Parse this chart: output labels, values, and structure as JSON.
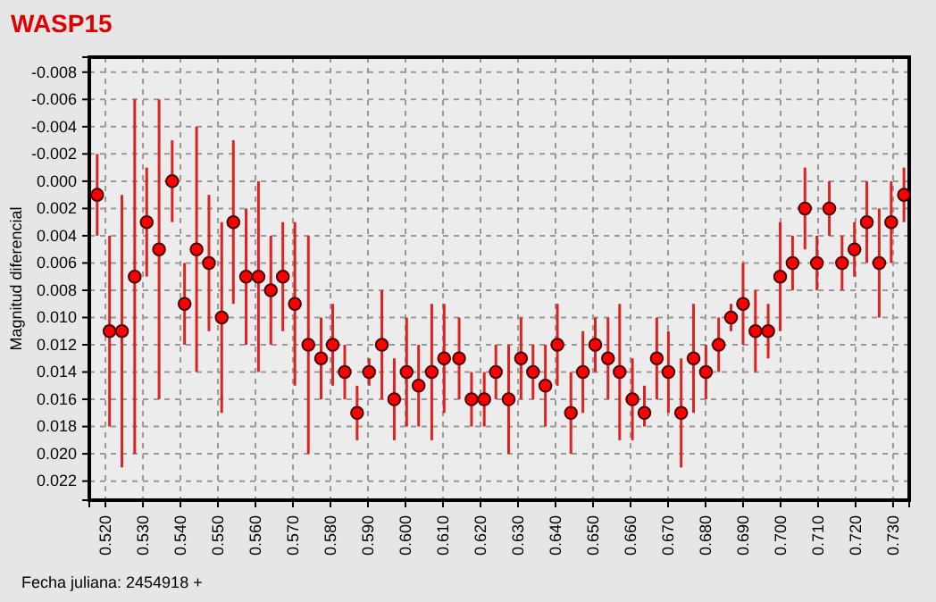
{
  "chart_data": {
    "type": "scatter",
    "title": "WASP15",
    "xlabel": "Fecha juliana: 2454918 +",
    "ylabel": "Magnitud diferencial",
    "x": [
      0.5178,
      0.5211,
      0.5244,
      0.5278,
      0.531,
      0.5343,
      0.5378,
      0.5411,
      0.5443,
      0.5476,
      0.551,
      0.5541,
      0.5575,
      0.5608,
      0.5641,
      0.5673,
      0.5705,
      0.5741,
      0.5775,
      0.5806,
      0.5838,
      0.5871,
      0.5903,
      0.5937,
      0.597,
      0.6003,
      0.6035,
      0.607,
      0.6103,
      0.6143,
      0.6176,
      0.621,
      0.6241,
      0.6275,
      0.6308,
      0.634,
      0.6373,
      0.6405,
      0.6441,
      0.6473,
      0.6506,
      0.654,
      0.6571,
      0.6605,
      0.6637,
      0.667,
      0.6701,
      0.6735,
      0.6768,
      0.6801,
      0.6835,
      0.6868,
      0.69,
      0.6933,
      0.6967,
      0.6999,
      0.7032,
      0.7065,
      0.7097,
      0.713,
      0.7164,
      0.7197,
      0.723,
      0.7263,
      0.7295,
      0.7329
    ],
    "series": [
      {
        "color": "#ff0000",
        "values": [
          0.001,
          0.011,
          0.011,
          0.007,
          0.003,
          0.005,
          0.0,
          0.009,
          0.005,
          0.006,
          0.01,
          0.003,
          0.007,
          0.007,
          0.008,
          0.007,
          0.009,
          0.012,
          0.013,
          0.012,
          0.014,
          0.017,
          0.014,
          0.012,
          0.016,
          0.014,
          0.015,
          0.014,
          0.013,
          0.013,
          0.016,
          0.016,
          0.014,
          0.016,
          0.013,
          0.014,
          0.015,
          0.012,
          0.017,
          0.014,
          0.012,
          0.013,
          0.014,
          0.016,
          0.017,
          0.013,
          0.014,
          0.017,
          0.013,
          0.014,
          0.012,
          0.01,
          0.009,
          0.011,
          0.011,
          0.007,
          0.006,
          0.002,
          0.006,
          0.002,
          0.006,
          0.005,
          0.003,
          0.006,
          0.003,
          0.001
        ],
        "errors": [
          [
            -0.002,
            0.004
          ],
          [
            0.004,
            0.018
          ],
          [
            0.001,
            0.021
          ],
          [
            -0.006,
            0.02
          ],
          [
            -0.001,
            0.007
          ],
          [
            -0.006,
            0.016
          ],
          [
            -0.003,
            0.003
          ],
          [
            0.006,
            0.012
          ],
          [
            -0.004,
            0.014
          ],
          [
            0.001,
            0.011
          ],
          [
            0.003,
            0.017
          ],
          [
            -0.003,
            0.009
          ],
          [
            0.002,
            0.012
          ],
          [
            0.0,
            0.014
          ],
          [
            0.004,
            0.012
          ],
          [
            0.003,
            0.011
          ],
          [
            0.003,
            0.015
          ],
          [
            0.004,
            0.02
          ],
          [
            0.01,
            0.016
          ],
          [
            0.009,
            0.015
          ],
          [
            0.012,
            0.016
          ],
          [
            0.015,
            0.019
          ],
          [
            0.013,
            0.015
          ],
          [
            0.008,
            0.016
          ],
          [
            0.013,
            0.019
          ],
          [
            0.01,
            0.018
          ],
          [
            0.012,
            0.018
          ],
          [
            0.009,
            0.019
          ],
          [
            0.009,
            0.017
          ],
          [
            0.01,
            0.016
          ],
          [
            0.014,
            0.018
          ],
          [
            0.014,
            0.018
          ],
          [
            0.012,
            0.016
          ],
          [
            0.012,
            0.02
          ],
          [
            0.01,
            0.016
          ],
          [
            0.012,
            0.016
          ],
          [
            0.012,
            0.018
          ],
          [
            0.009,
            0.015
          ],
          [
            0.014,
            0.02
          ],
          [
            0.011,
            0.017
          ],
          [
            0.01,
            0.014
          ],
          [
            0.01,
            0.016
          ],
          [
            0.009,
            0.019
          ],
          [
            0.013,
            0.019
          ],
          [
            0.015,
            0.018
          ],
          [
            0.01,
            0.016
          ],
          [
            0.011,
            0.017
          ],
          [
            0.013,
            0.021
          ],
          [
            0.009,
            0.017
          ],
          [
            0.012,
            0.016
          ],
          [
            0.01,
            0.014
          ],
          [
            0.009,
            0.011
          ],
          [
            0.006,
            0.012
          ],
          [
            0.008,
            0.014
          ],
          [
            0.009,
            0.013
          ],
          [
            0.003,
            0.011
          ],
          [
            0.004,
            0.008
          ],
          [
            -0.001,
            0.005
          ],
          [
            0.004,
            0.008
          ],
          [
            0.0,
            0.004
          ],
          [
            0.004,
            0.008
          ],
          [
            0.003,
            0.007
          ],
          [
            0.0,
            0.006
          ],
          [
            0.002,
            0.01
          ],
          [
            0.0,
            0.006
          ],
          [
            -0.001,
            0.003
          ]
        ]
      }
    ],
    "xlim": [
      0.5157,
      0.7343
    ],
    "ylim": [
      0.0234,
      -0.0091
    ],
    "xticks": [
      {
        "value": 0.52,
        "label": "0.520"
      },
      {
        "value": 0.53,
        "label": "0.530"
      },
      {
        "value": 0.54,
        "label": "0.540"
      },
      {
        "value": 0.55,
        "label": "0.550"
      },
      {
        "value": 0.56,
        "label": "0.560"
      },
      {
        "value": 0.57,
        "label": "0.570"
      },
      {
        "value": 0.58,
        "label": "0.580"
      },
      {
        "value": 0.59,
        "label": "0.590"
      },
      {
        "value": 0.6,
        "label": "0.600"
      },
      {
        "value": 0.61,
        "label": "0.610"
      },
      {
        "value": 0.62,
        "label": "0.620"
      },
      {
        "value": 0.63,
        "label": "0.630"
      },
      {
        "value": 0.64,
        "label": "0.640"
      },
      {
        "value": 0.65,
        "label": "0.650"
      },
      {
        "value": 0.66,
        "label": "0.660"
      },
      {
        "value": 0.67,
        "label": "0.670"
      },
      {
        "value": 0.68,
        "label": "0.680"
      },
      {
        "value": 0.69,
        "label": "0.690"
      },
      {
        "value": 0.7,
        "label": "0.700"
      },
      {
        "value": 0.71,
        "label": "0.710"
      },
      {
        "value": 0.72,
        "label": "0.720"
      },
      {
        "value": 0.73,
        "label": "0.730"
      }
    ],
    "yticks": [
      {
        "value": -0.008,
        "label": "-0.008"
      },
      {
        "value": -0.006,
        "label": "-0.006"
      },
      {
        "value": -0.004,
        "label": "-0.004"
      },
      {
        "value": -0.002,
        "label": "-0.002"
      },
      {
        "value": 0,
        "label": "0.000"
      },
      {
        "value": 0.002,
        "label": "0.002"
      },
      {
        "value": 0.004,
        "label": "0.004"
      },
      {
        "value": 0.006,
        "label": "0.006"
      },
      {
        "value": 0.008,
        "label": "0.008"
      },
      {
        "value": 0.01,
        "label": "0.010"
      },
      {
        "value": 0.012,
        "label": "0.012"
      },
      {
        "value": 0.014,
        "label": "0.014"
      },
      {
        "value": 0.016,
        "label": "0.016"
      },
      {
        "value": 0.018,
        "label": "0.018"
      },
      {
        "value": 0.02,
        "label": "0.020"
      },
      {
        "value": 0.022,
        "label": "0.022"
      }
    ],
    "grid": true,
    "marker": "circle"
  }
}
